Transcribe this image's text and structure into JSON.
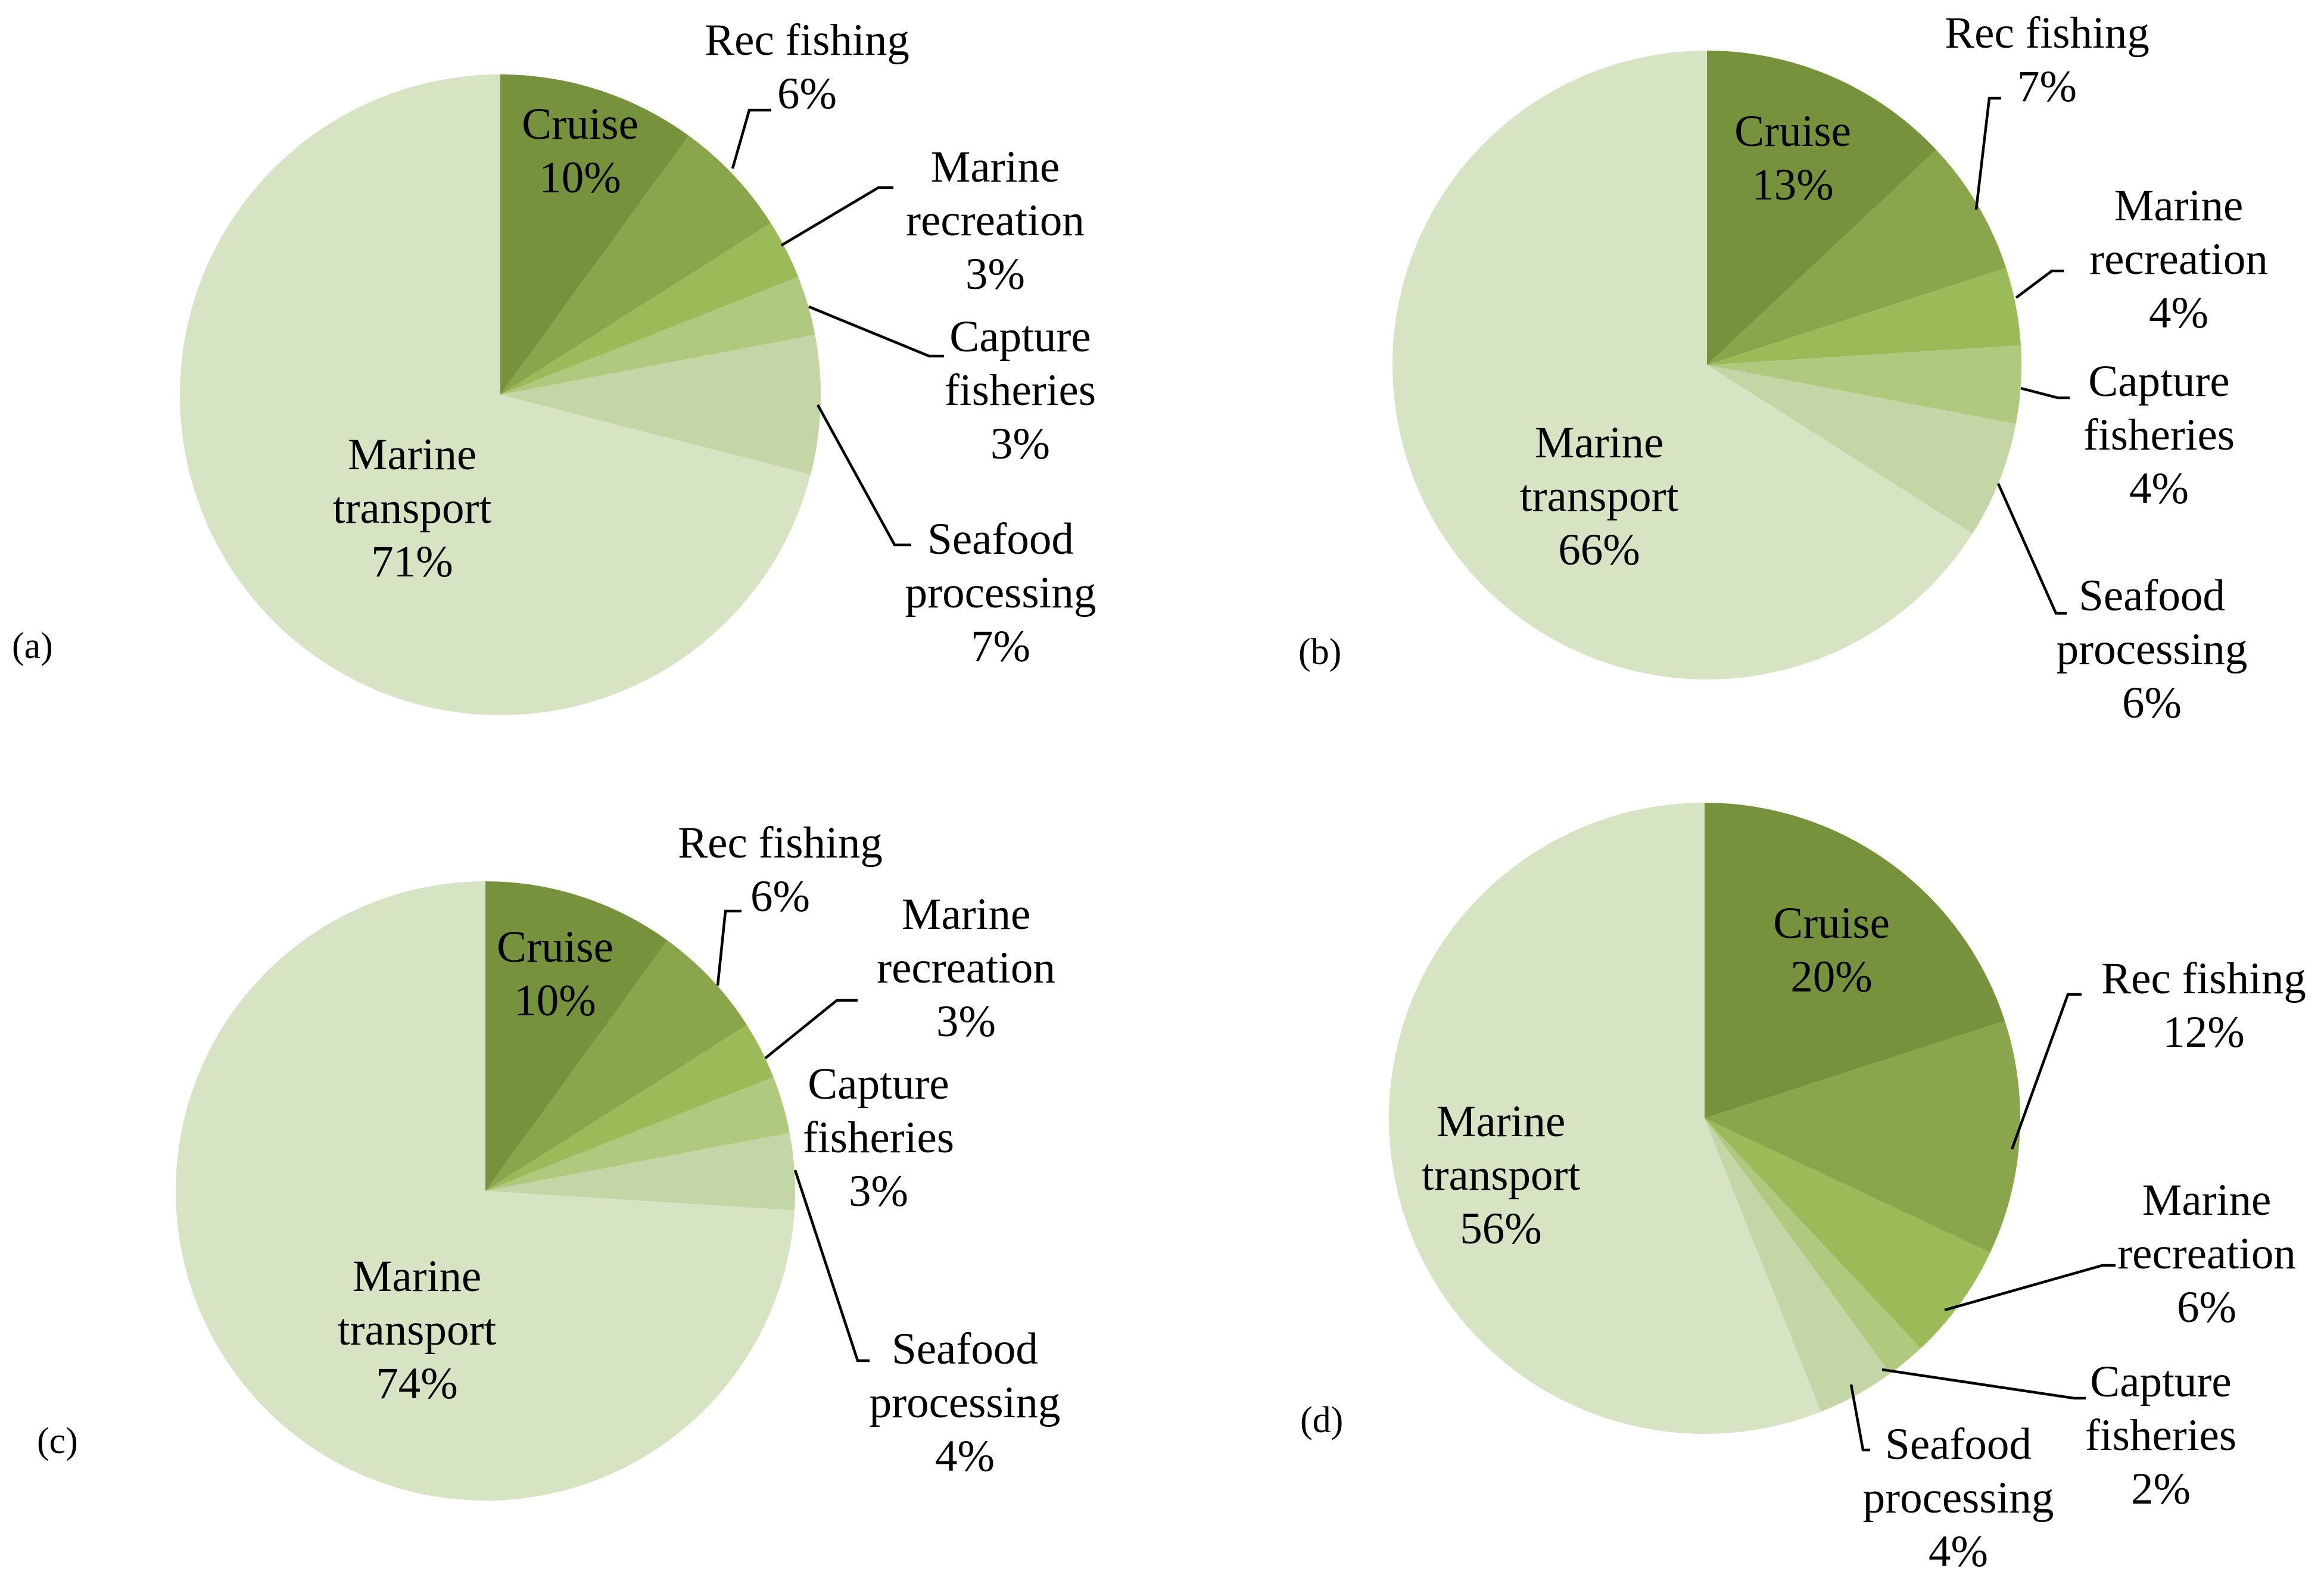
{
  "chart_data": [
    {
      "type": "pie",
      "panel": "(a)",
      "slices": [
        {
          "name": "Cruise",
          "value": 10,
          "color": "#76923c"
        },
        {
          "name": "Rec fishing",
          "value": 6,
          "color": "#8aa64c"
        },
        {
          "name": "Marine recreation",
          "value": 3,
          "color": "#9bbb59"
        },
        {
          "name": "Capture fisheries",
          "value": 3,
          "color": "#afc97f"
        },
        {
          "name": "Seafood processing",
          "value": 7,
          "color": "#c4d6a6"
        },
        {
          "name": "Marine transport",
          "value": 71,
          "color": "#d7e4c3"
        }
      ],
      "labels": [
        {
          "lines": [
            "Cruise",
            "10%"
          ]
        },
        {
          "lines": [
            "Rec fishing",
            "6%"
          ]
        },
        {
          "lines": [
            "Marine",
            "recreation",
            "3%"
          ]
        },
        {
          "lines": [
            "Capture",
            "fisheries",
            "3%"
          ]
        },
        {
          "lines": [
            "Seafood",
            "processing",
            "7%"
          ]
        },
        {
          "lines": [
            "Marine",
            "transport",
            "71%"
          ]
        }
      ]
    },
    {
      "type": "pie",
      "panel": "(b)",
      "slices": [
        {
          "name": "Cruise",
          "value": 13,
          "color": "#76923c"
        },
        {
          "name": "Rec fishing",
          "value": 7,
          "color": "#8aa64c"
        },
        {
          "name": "Marine recreation",
          "value": 4,
          "color": "#9bbb59"
        },
        {
          "name": "Capture fisheries",
          "value": 4,
          "color": "#afc97f"
        },
        {
          "name": "Seafood processing",
          "value": 6,
          "color": "#c4d6a6"
        },
        {
          "name": "Marine transport",
          "value": 66,
          "color": "#d7e4c3"
        }
      ],
      "labels": [
        {
          "lines": [
            "Cruise",
            "13%"
          ]
        },
        {
          "lines": [
            "Rec fishing",
            "7%"
          ]
        },
        {
          "lines": [
            "Marine",
            "recreation",
            "4%"
          ]
        },
        {
          "lines": [
            "Capture",
            "fisheries",
            "4%"
          ]
        },
        {
          "lines": [
            "Seafood",
            "processing",
            "6%"
          ]
        },
        {
          "lines": [
            "Marine",
            "transport",
            "66%"
          ]
        }
      ]
    },
    {
      "type": "pie",
      "panel": "(c)",
      "slices": [
        {
          "name": "Cruise",
          "value": 10,
          "color": "#76923c"
        },
        {
          "name": "Rec fishing",
          "value": 6,
          "color": "#8aa64c"
        },
        {
          "name": "Marine recreation",
          "value": 3,
          "color": "#9bbb59"
        },
        {
          "name": "Capture fisheries",
          "value": 3,
          "color": "#afc97f"
        },
        {
          "name": "Seafood processing",
          "value": 4,
          "color": "#c4d6a6"
        },
        {
          "name": "Marine transport",
          "value": 74,
          "color": "#d7e4c3"
        }
      ],
      "labels": [
        {
          "lines": [
            "Cruise",
            "10%"
          ]
        },
        {
          "lines": [
            "Rec fishing",
            "6%"
          ]
        },
        {
          "lines": [
            "Marine",
            "recreation",
            "3%"
          ]
        },
        {
          "lines": [
            "Capture",
            "fisheries",
            "3%"
          ]
        },
        {
          "lines": [
            "Seafood",
            "processing",
            "4%"
          ]
        },
        {
          "lines": [
            "Marine",
            "transport",
            "74%"
          ]
        }
      ]
    },
    {
      "type": "pie",
      "panel": "(d)",
      "slices": [
        {
          "name": "Cruise",
          "value": 20,
          "color": "#76923c"
        },
        {
          "name": "Rec fishing",
          "value": 12,
          "color": "#8aa64c"
        },
        {
          "name": "Marine recreation",
          "value": 6,
          "color": "#9bbb59"
        },
        {
          "name": "Capture fisheries",
          "value": 2,
          "color": "#afc97f"
        },
        {
          "name": "Seafood processing",
          "value": 4,
          "color": "#c4d6a6"
        },
        {
          "name": "Marine transport",
          "value": 56,
          "color": "#d7e4c3"
        }
      ],
      "labels": [
        {
          "lines": [
            "Cruise",
            "20%"
          ]
        },
        {
          "lines": [
            "Rec fishing",
            "12%"
          ]
        },
        {
          "lines": [
            "Marine",
            "recreation",
            "6%"
          ]
        },
        {
          "lines": [
            "Capture",
            "fisheries",
            "2%"
          ]
        },
        {
          "lines": [
            "Seafood",
            "processing",
            "4%"
          ]
        },
        {
          "lines": [
            "Marine",
            "transport",
            "56%"
          ]
        }
      ]
    }
  ]
}
